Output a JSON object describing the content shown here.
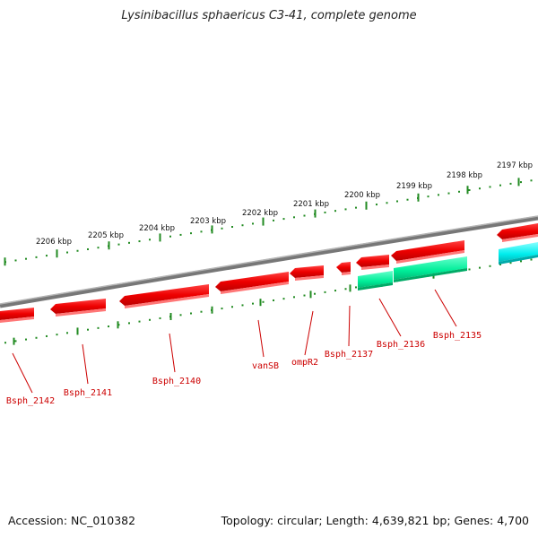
{
  "title": "Lysinibacillus sphaericus C3-41, complete genome",
  "footer": {
    "accession_text": "Accession: NC_010382",
    "topology_text": "Topology: circular; Length: 4,639,821 bp; Genes: 4,700"
  },
  "colors": {
    "forward_gene": "#ff0000",
    "reverse_gene_cds": "#00ee99",
    "other_feature": "#00ffff",
    "backbone": "#888888",
    "ticks": "#228b22",
    "gene_label": "#cc0000"
  },
  "kbp_ticks": [
    "2206 kbp",
    "2205 kbp",
    "2204 kbp",
    "2203 kbp",
    "2202 kbp",
    "2201 kbp",
    "2200 kbp",
    "2199 kbp",
    "2198 kbp",
    "2197 kbp"
  ],
  "gene_labels": [
    "Bsph_2142",
    "Bsph_2141",
    "Bsph_2140",
    "vanSB",
    "ompR2",
    "Bsph_2137",
    "Bsph_2136",
    "Bsph_2135"
  ]
}
